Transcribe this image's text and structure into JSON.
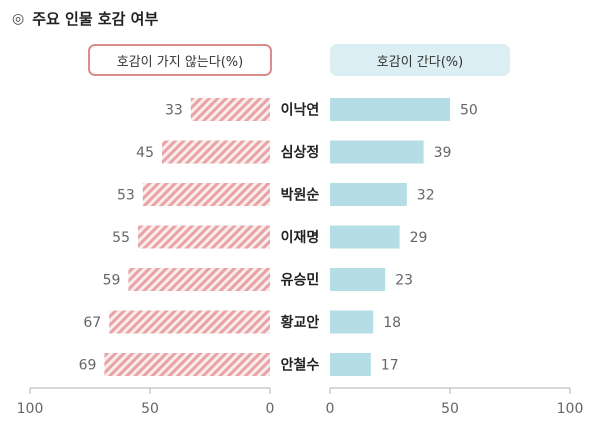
{
  "title": "주요 인물 호감 여부",
  "title_mark": "◎",
  "colors": {
    "negative": "#e7a3a6",
    "positive": "#b5dde6",
    "negative_header_border": "#d98c8c",
    "positive_header_bg": "#daeef3",
    "axis": "#b0b0b0"
  },
  "chart_data": {
    "type": "bar",
    "categories": [
      "이낙연",
      "심상정",
      "박원순",
      "이재명",
      "유승민",
      "황교안",
      "안철수"
    ],
    "series": [
      {
        "name": "호감이 가지 않는다(%)",
        "values": [
          33,
          45,
          53,
          55,
          59,
          67,
          69
        ]
      },
      {
        "name": "호감이 간다(%)",
        "values": [
          50,
          39,
          32,
          29,
          23,
          18,
          17
        ]
      }
    ],
    "left_axis": {
      "range": [
        100,
        0
      ],
      "ticks": [
        "100",
        "50",
        "0"
      ]
    },
    "right_axis": {
      "range": [
        0,
        100
      ],
      "ticks": [
        "0",
        "50",
        "100"
      ]
    },
    "grid": false,
    "legend": "top"
  }
}
